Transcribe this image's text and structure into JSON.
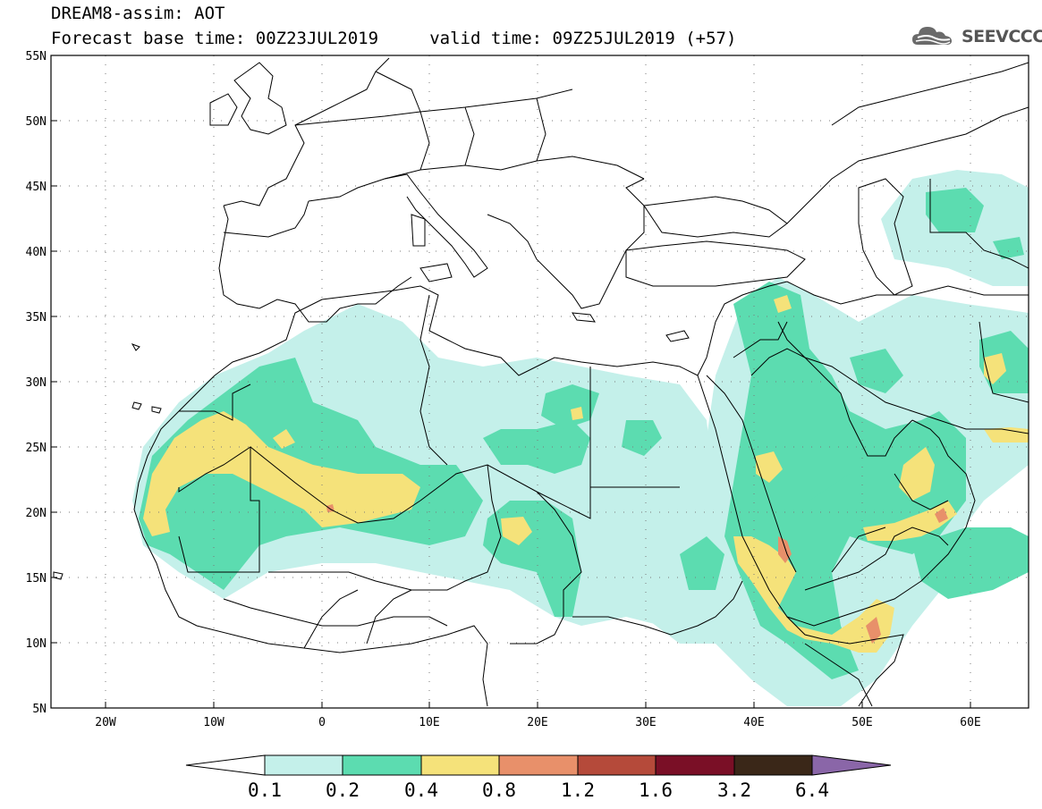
{
  "header": {
    "title": "DREAM8-assim: AOT",
    "subtitle": "Forecast base time: 00Z23JUL2019     valid time: 09Z25JUL2019 (+57)",
    "logo_text": "SEEVCCC"
  },
  "map": {
    "lon_range": [
      -25,
      65
    ],
    "lat_range": [
      5,
      55
    ],
    "lat_labels": [
      "55N",
      "50N",
      "45N",
      "40N",
      "35N",
      "30N",
      "25N",
      "20N",
      "15N",
      "10N",
      "5N"
    ],
    "lon_labels": [
      "20W",
      "10W",
      "0",
      "10E",
      "20E",
      "30E",
      "40E",
      "50E",
      "60E"
    ],
    "grid": "dotted"
  },
  "colorbar": {
    "colors": [
      "#c4f0ea",
      "#5cdcb0",
      "#f5e27a",
      "#e8906a",
      "#b54a3a",
      "#7a0f26",
      "#3a2718",
      "#8a66a8"
    ],
    "labels": [
      "0.1",
      "0.2",
      "0.4",
      "0.8",
      "1.2",
      "1.6",
      "3.2",
      "6.4"
    ]
  }
}
